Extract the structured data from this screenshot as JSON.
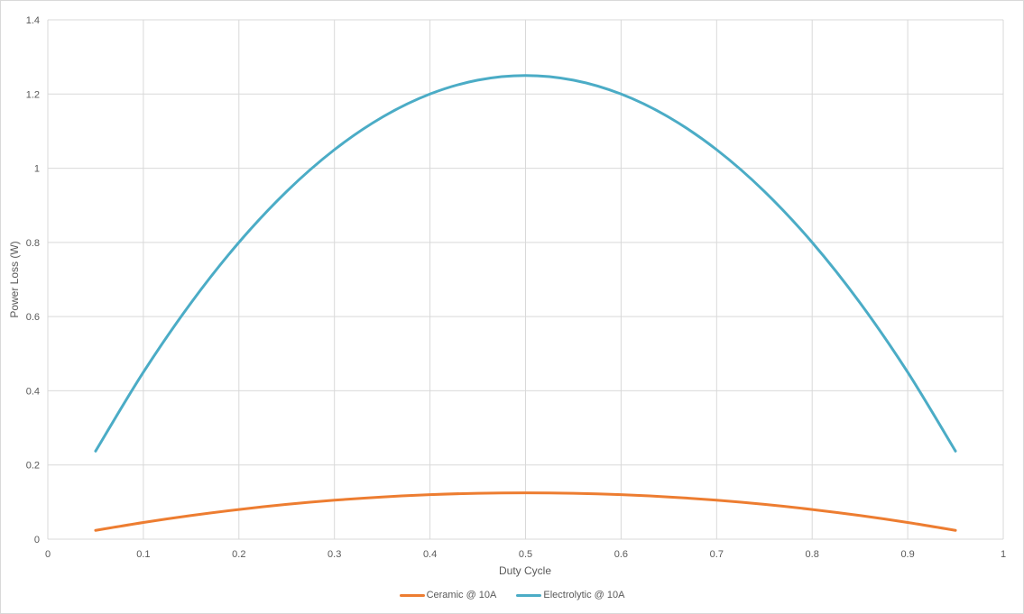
{
  "chart_data": {
    "type": "line",
    "title": "",
    "xlabel": "Duty Cycle",
    "ylabel": "Power Loss (W)",
    "xlim": [
      0,
      1
    ],
    "ylim": [
      0,
      1.4
    ],
    "x_ticks": [
      "0",
      "0.1",
      "0.2",
      "0.3",
      "0.4",
      "0.5",
      "0.6",
      "0.7",
      "0.8",
      "0.9",
      "1"
    ],
    "y_ticks": [
      "0",
      "0.2",
      "0.4",
      "0.6",
      "0.8",
      "1",
      "1.2",
      "1.4"
    ],
    "grid": true,
    "legend_position": "bottom",
    "x": [
      0.05,
      0.1,
      0.15,
      0.2,
      0.25,
      0.3,
      0.35,
      0.4,
      0.45,
      0.5,
      0.55,
      0.6,
      0.65,
      0.7,
      0.75,
      0.8,
      0.85,
      0.9,
      0.95
    ],
    "series": [
      {
        "name": "Ceramic @ 10A",
        "color": "#ED7D31",
        "values": [
          0.02375,
          0.045,
          0.06375,
          0.08,
          0.09375,
          0.105,
          0.11375,
          0.12,
          0.12375,
          0.125,
          0.12375,
          0.12,
          0.11375,
          0.105,
          0.09375,
          0.08,
          0.06375,
          0.045,
          0.02375
        ]
      },
      {
        "name": "Electrolytic @ 10A",
        "color": "#4BACC6",
        "values": [
          0.2375,
          0.45,
          0.6375,
          0.8,
          0.9375,
          1.05,
          1.1375,
          1.2,
          1.2375,
          1.25,
          1.2375,
          1.2,
          1.1375,
          1.05,
          0.9375,
          0.8,
          0.6375,
          0.45,
          0.2375
        ]
      }
    ]
  },
  "legend": {
    "items": [
      {
        "label": "Ceramic @ 10A",
        "color": "#ED7D31"
      },
      {
        "label": "Electrolytic @ 10A",
        "color": "#4BACC6"
      }
    ]
  }
}
